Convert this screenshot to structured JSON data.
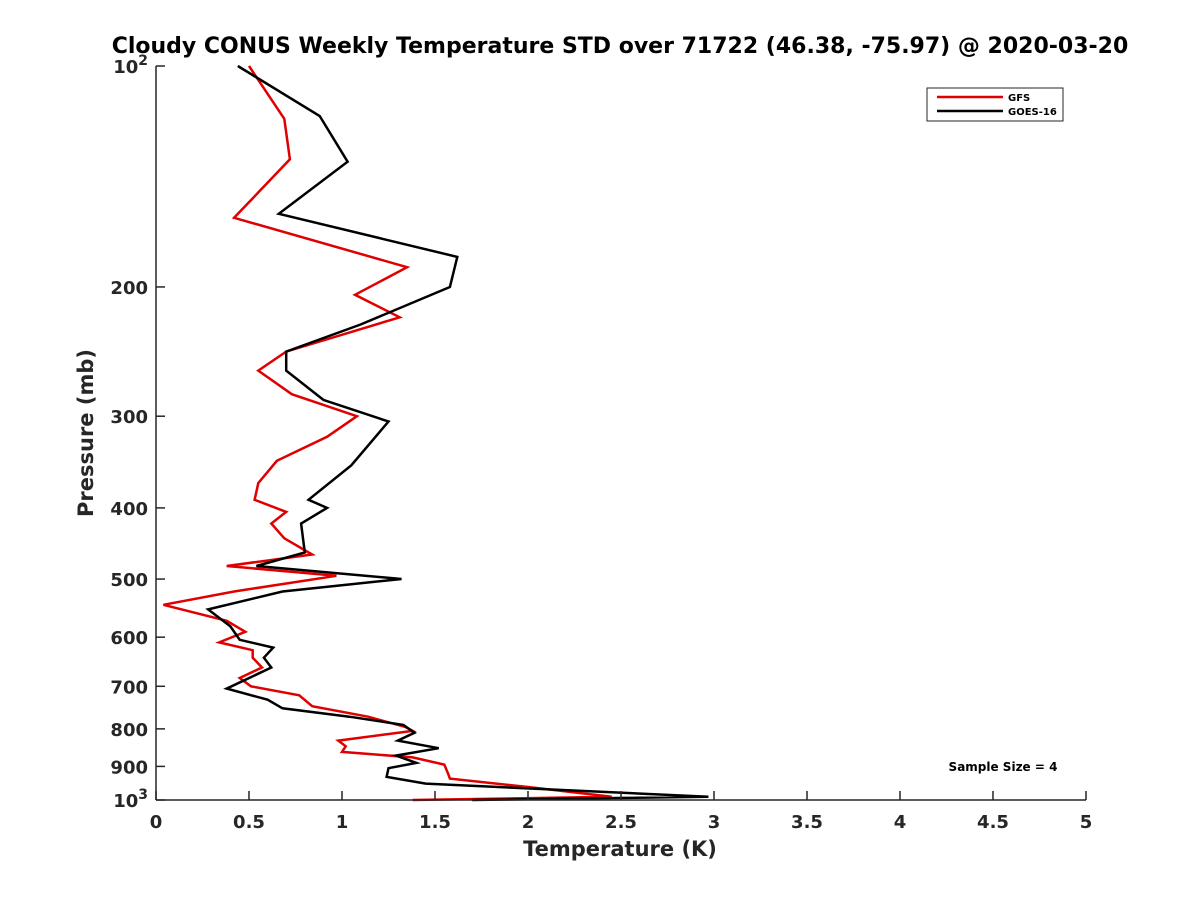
{
  "chart_data": {
    "type": "line",
    "title": "Cloudy CONUS Weekly Temperature STD over 71722 (46.38, -75.97) @ 2020-03-20",
    "xlabel": "Temperature (K)",
    "ylabel": "Pressure (mb)",
    "xlim": [
      0,
      5
    ],
    "ylim": [
      100,
      1000
    ],
    "yscale": "log",
    "y_reversed": true,
    "xticks": [
      {
        "value": 0,
        "label": "0"
      },
      {
        "value": 0.5,
        "label": "0.5"
      },
      {
        "value": 1,
        "label": "1"
      },
      {
        "value": 1.5,
        "label": "1.5"
      },
      {
        "value": 2,
        "label": "2"
      },
      {
        "value": 2.5,
        "label": "2.5"
      },
      {
        "value": 3,
        "label": "3"
      },
      {
        "value": 3.5,
        "label": "3.5"
      },
      {
        "value": 4,
        "label": "4"
      },
      {
        "value": 4.5,
        "label": "4.5"
      },
      {
        "value": 5,
        "label": "5"
      }
    ],
    "yticks": [
      {
        "value": 100,
        "base": "10",
        "exp": "2"
      },
      {
        "value": 200,
        "base": "200",
        "exp": ""
      },
      {
        "value": 300,
        "base": "300",
        "exp": ""
      },
      {
        "value": 400,
        "base": "400",
        "exp": ""
      },
      {
        "value": 500,
        "base": "500",
        "exp": ""
      },
      {
        "value": 600,
        "base": "600",
        "exp": ""
      },
      {
        "value": 700,
        "base": "700",
        "exp": ""
      },
      {
        "value": 800,
        "base": "800",
        "exp": ""
      },
      {
        "value": 900,
        "base": "900",
        "exp": ""
      },
      {
        "value": 1000,
        "base": "10",
        "exp": "3"
      }
    ],
    "legend_position": "top-right",
    "annotation": "Sample Size = 4",
    "series": [
      {
        "name": "GFS",
        "color": "#e00000",
        "points": [
          [
            0.5,
            100
          ],
          [
            0.69,
            118
          ],
          [
            0.72,
            134
          ],
          [
            0.42,
            161
          ],
          [
            1.35,
            188
          ],
          [
            1.07,
            205
          ],
          [
            1.31,
            220
          ],
          [
            0.7,
            245
          ],
          [
            0.55,
            260
          ],
          [
            0.73,
            280
          ],
          [
            1.08,
            300
          ],
          [
            0.92,
            320
          ],
          [
            0.65,
            345
          ],
          [
            0.55,
            370
          ],
          [
            0.53,
            390
          ],
          [
            0.7,
            405
          ],
          [
            0.62,
            420
          ],
          [
            0.69,
            440
          ],
          [
            0.84,
            463
          ],
          [
            0.38,
            480
          ],
          [
            0.97,
            495
          ],
          [
            0.42,
            520
          ],
          [
            0.04,
            542
          ],
          [
            0.38,
            570
          ],
          [
            0.48,
            590
          ],
          [
            0.34,
            610
          ],
          [
            0.52,
            625
          ],
          [
            0.52,
            640
          ],
          [
            0.57,
            660
          ],
          [
            0.45,
            682
          ],
          [
            0.51,
            700
          ],
          [
            0.77,
            720
          ],
          [
            0.84,
            745
          ],
          [
            1.14,
            770
          ],
          [
            1.34,
            795
          ],
          [
            1.38,
            805
          ],
          [
            0.98,
            830
          ],
          [
            1.02,
            845
          ],
          [
            1.0,
            860
          ],
          [
            1.38,
            875
          ],
          [
            1.55,
            895
          ],
          [
            1.57,
            920
          ],
          [
            1.58,
            935
          ],
          [
            2.0,
            960
          ],
          [
            2.45,
            990
          ],
          [
            1.38,
            1000
          ]
        ]
      },
      {
        "name": "GOES-16",
        "color": "#000000",
        "points": [
          [
            0.44,
            100
          ],
          [
            0.88,
            117
          ],
          [
            1.03,
            135
          ],
          [
            0.66,
            159
          ],
          [
            1.62,
            182
          ],
          [
            1.58,
            200
          ],
          [
            1.1,
            225
          ],
          [
            0.7,
            245
          ],
          [
            0.7,
            260
          ],
          [
            0.9,
            285
          ],
          [
            1.25,
            305
          ],
          [
            1.05,
            350
          ],
          [
            0.82,
            390
          ],
          [
            0.92,
            400
          ],
          [
            0.78,
            420
          ],
          [
            0.8,
            460
          ],
          [
            0.54,
            480
          ],
          [
            1.32,
            500
          ],
          [
            0.68,
            520
          ],
          [
            0.28,
            550
          ],
          [
            0.4,
            580
          ],
          [
            0.45,
            605
          ],
          [
            0.63,
            620
          ],
          [
            0.58,
            640
          ],
          [
            0.62,
            660
          ],
          [
            0.38,
            705
          ],
          [
            0.6,
            730
          ],
          [
            0.68,
            750
          ],
          [
            1.04,
            770
          ],
          [
            1.33,
            790
          ],
          [
            1.39,
            810
          ],
          [
            1.3,
            830
          ],
          [
            1.52,
            850
          ],
          [
            1.29,
            870
          ],
          [
            1.4,
            890
          ],
          [
            1.25,
            905
          ],
          [
            1.24,
            930
          ],
          [
            1.45,
            950
          ],
          [
            2.97,
            990
          ],
          [
            1.7,
            1000
          ]
        ]
      }
    ]
  }
}
